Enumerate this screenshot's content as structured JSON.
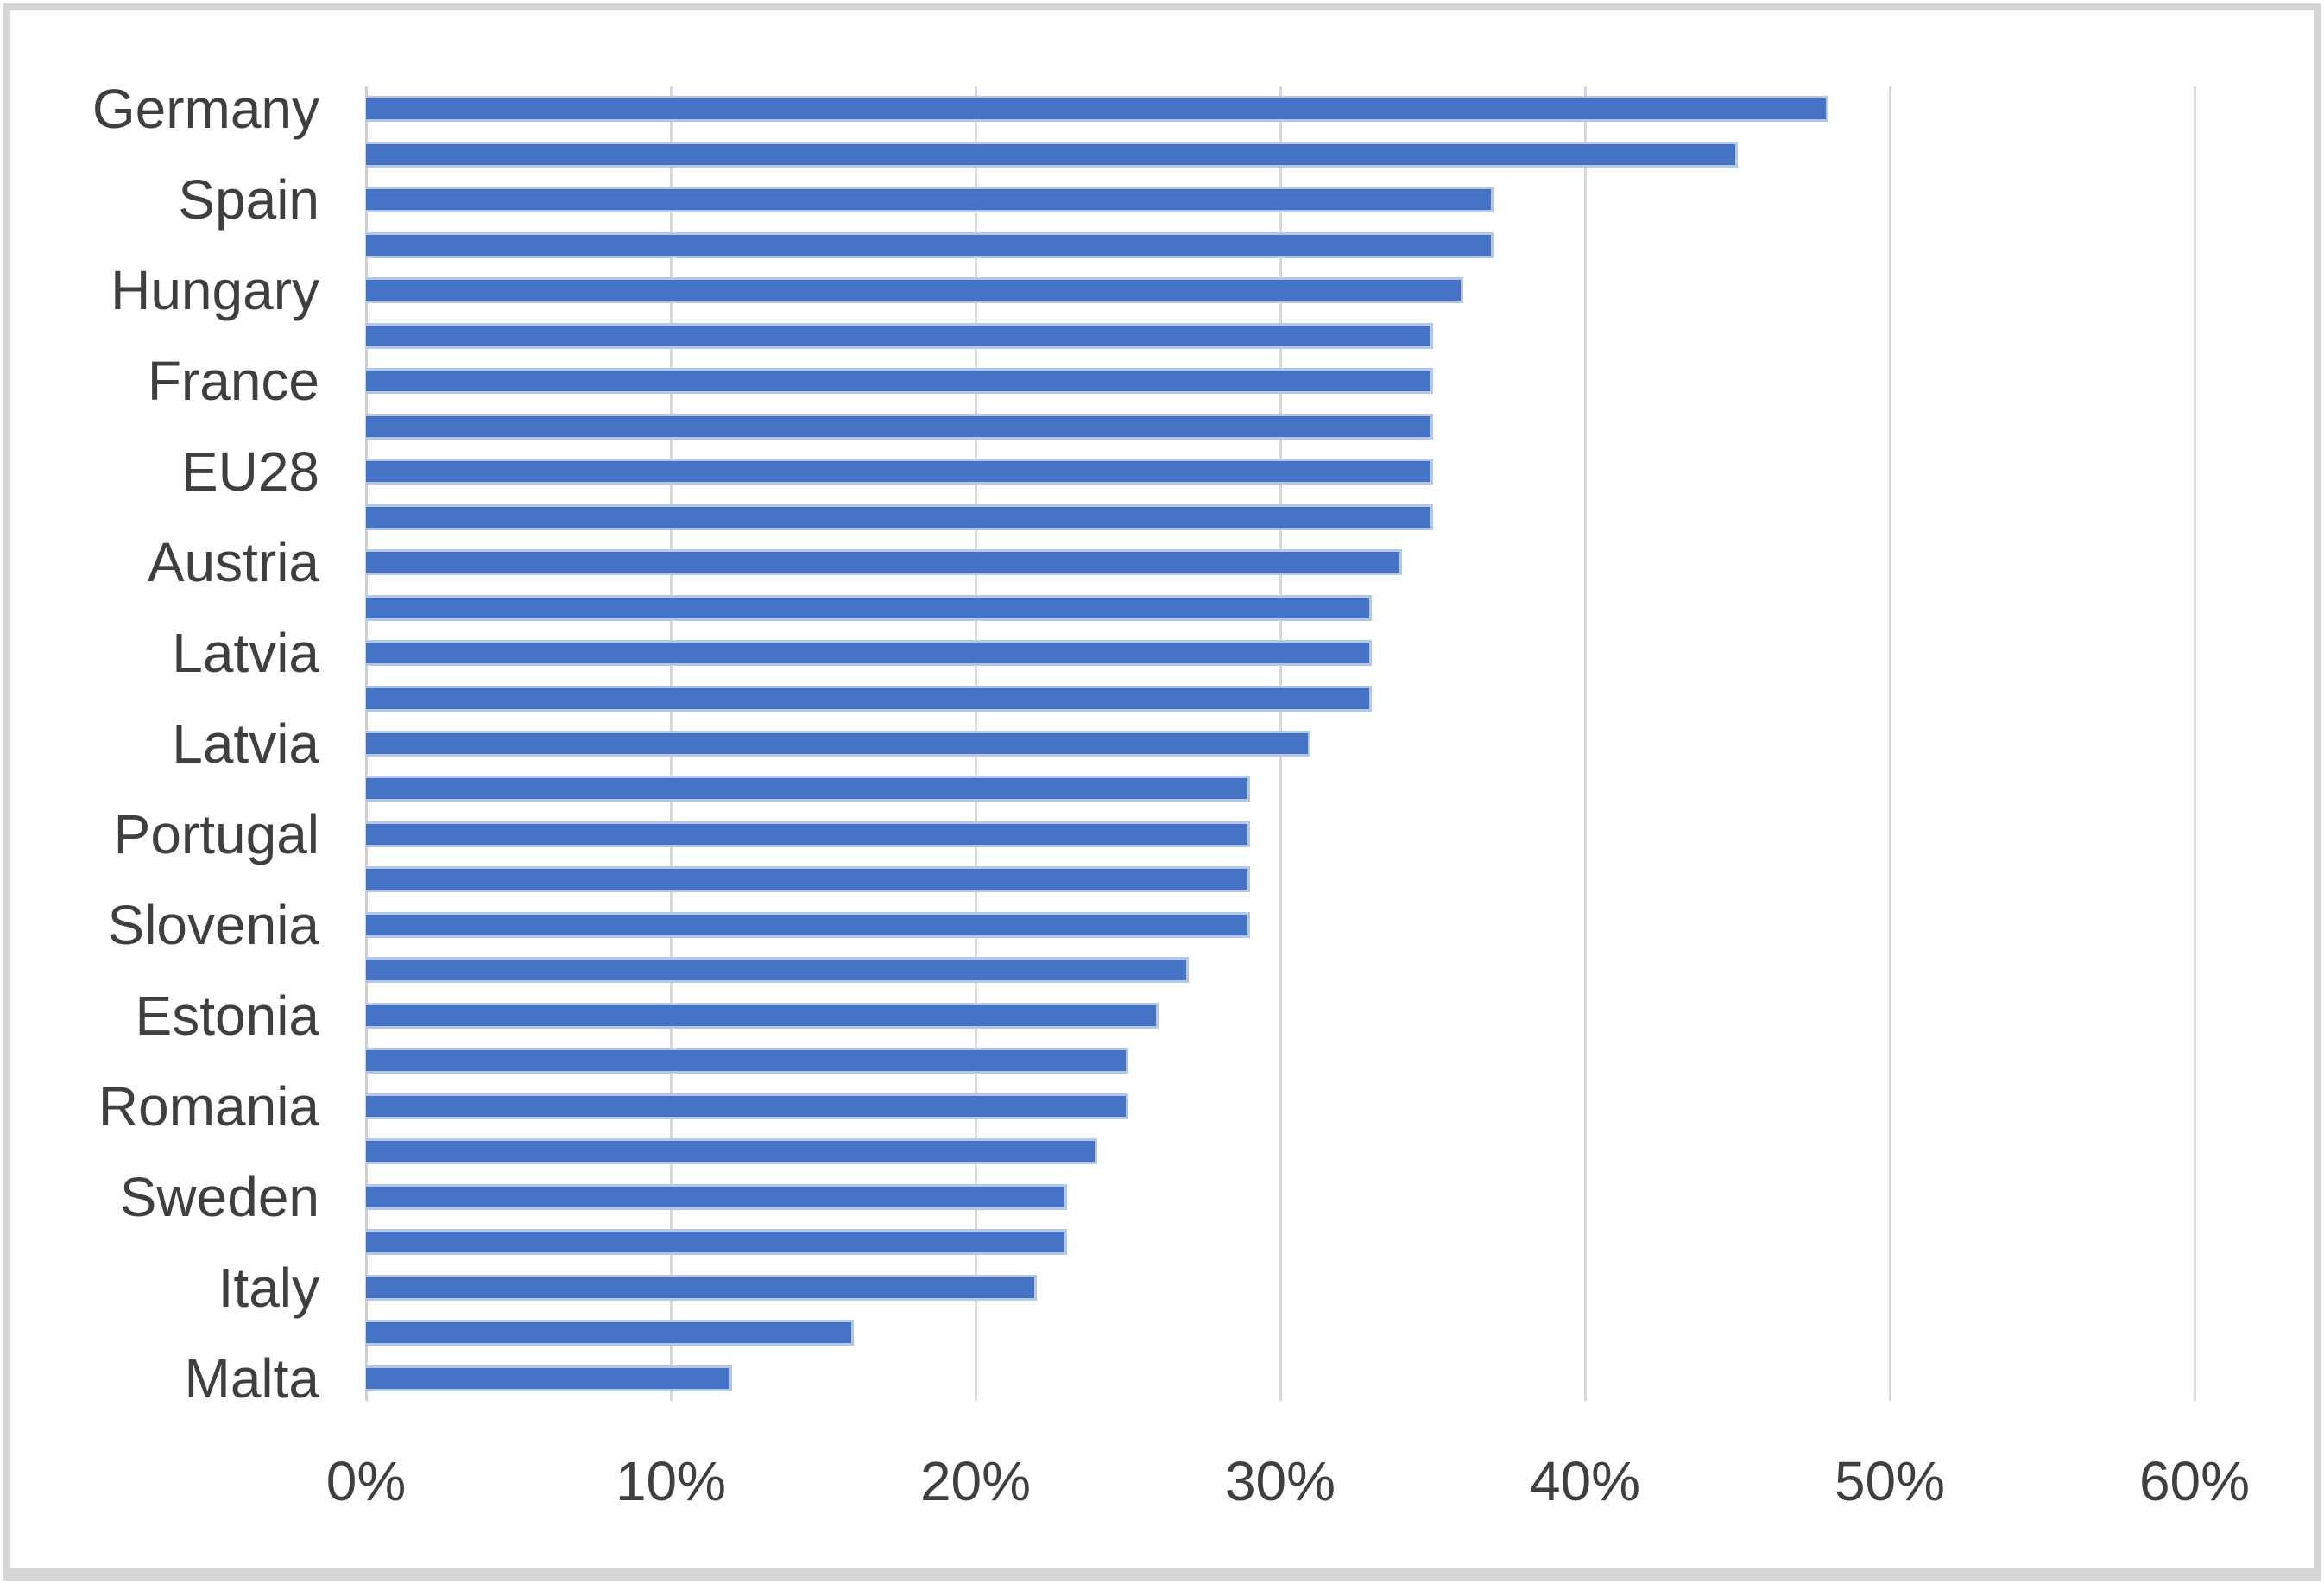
{
  "chart_data": {
    "type": "bar",
    "orientation": "horizontal",
    "title": "",
    "xlabel": "",
    "ylabel": "",
    "xlim": [
      0,
      60
    ],
    "grid": true,
    "legend": false,
    "x_ticks": [
      "0%",
      "10%",
      "20%",
      "30%",
      "40%",
      "50%",
      "60%"
    ],
    "x_tick_values": [
      0,
      10,
      20,
      30,
      40,
      50,
      60
    ],
    "bars": [
      {
        "label": "Germany",
        "value": 48
      },
      {
        "label": "",
        "value": 45
      },
      {
        "label": "Spain",
        "value": 37
      },
      {
        "label": "",
        "value": 37
      },
      {
        "label": "Hungary",
        "value": 36
      },
      {
        "label": "",
        "value": 35
      },
      {
        "label": "France",
        "value": 35
      },
      {
        "label": "",
        "value": 35
      },
      {
        "label": "EU28",
        "value": 35
      },
      {
        "label": "",
        "value": 35
      },
      {
        "label": "Austria",
        "value": 34
      },
      {
        "label": "",
        "value": 33
      },
      {
        "label": "Latvia",
        "value": 33
      },
      {
        "label": "",
        "value": 33
      },
      {
        "label": "Latvia",
        "value": 31
      },
      {
        "label": "",
        "value": 29
      },
      {
        "label": "Portugal",
        "value": 29
      },
      {
        "label": "",
        "value": 29
      },
      {
        "label": "Slovenia",
        "value": 29
      },
      {
        "label": "",
        "value": 27
      },
      {
        "label": "Estonia",
        "value": 26
      },
      {
        "label": "",
        "value": 25
      },
      {
        "label": "Romania",
        "value": 25
      },
      {
        "label": "",
        "value": 24
      },
      {
        "label": "Sweden",
        "value": 23
      },
      {
        "label": "",
        "value": 23
      },
      {
        "label": "Italy",
        "value": 22
      },
      {
        "label": "",
        "value": 16
      },
      {
        "label": "Malta",
        "value": 12
      }
    ],
    "colors": {
      "bar_fill": "#4472C4",
      "bar_edge": "#B4C7E7",
      "gridline": "#D9D9D9",
      "axis_line": "#CFCFCF",
      "frame_border": "#D5D5D5",
      "text": "#3F3F3F",
      "background": "#FFFFFF"
    }
  }
}
